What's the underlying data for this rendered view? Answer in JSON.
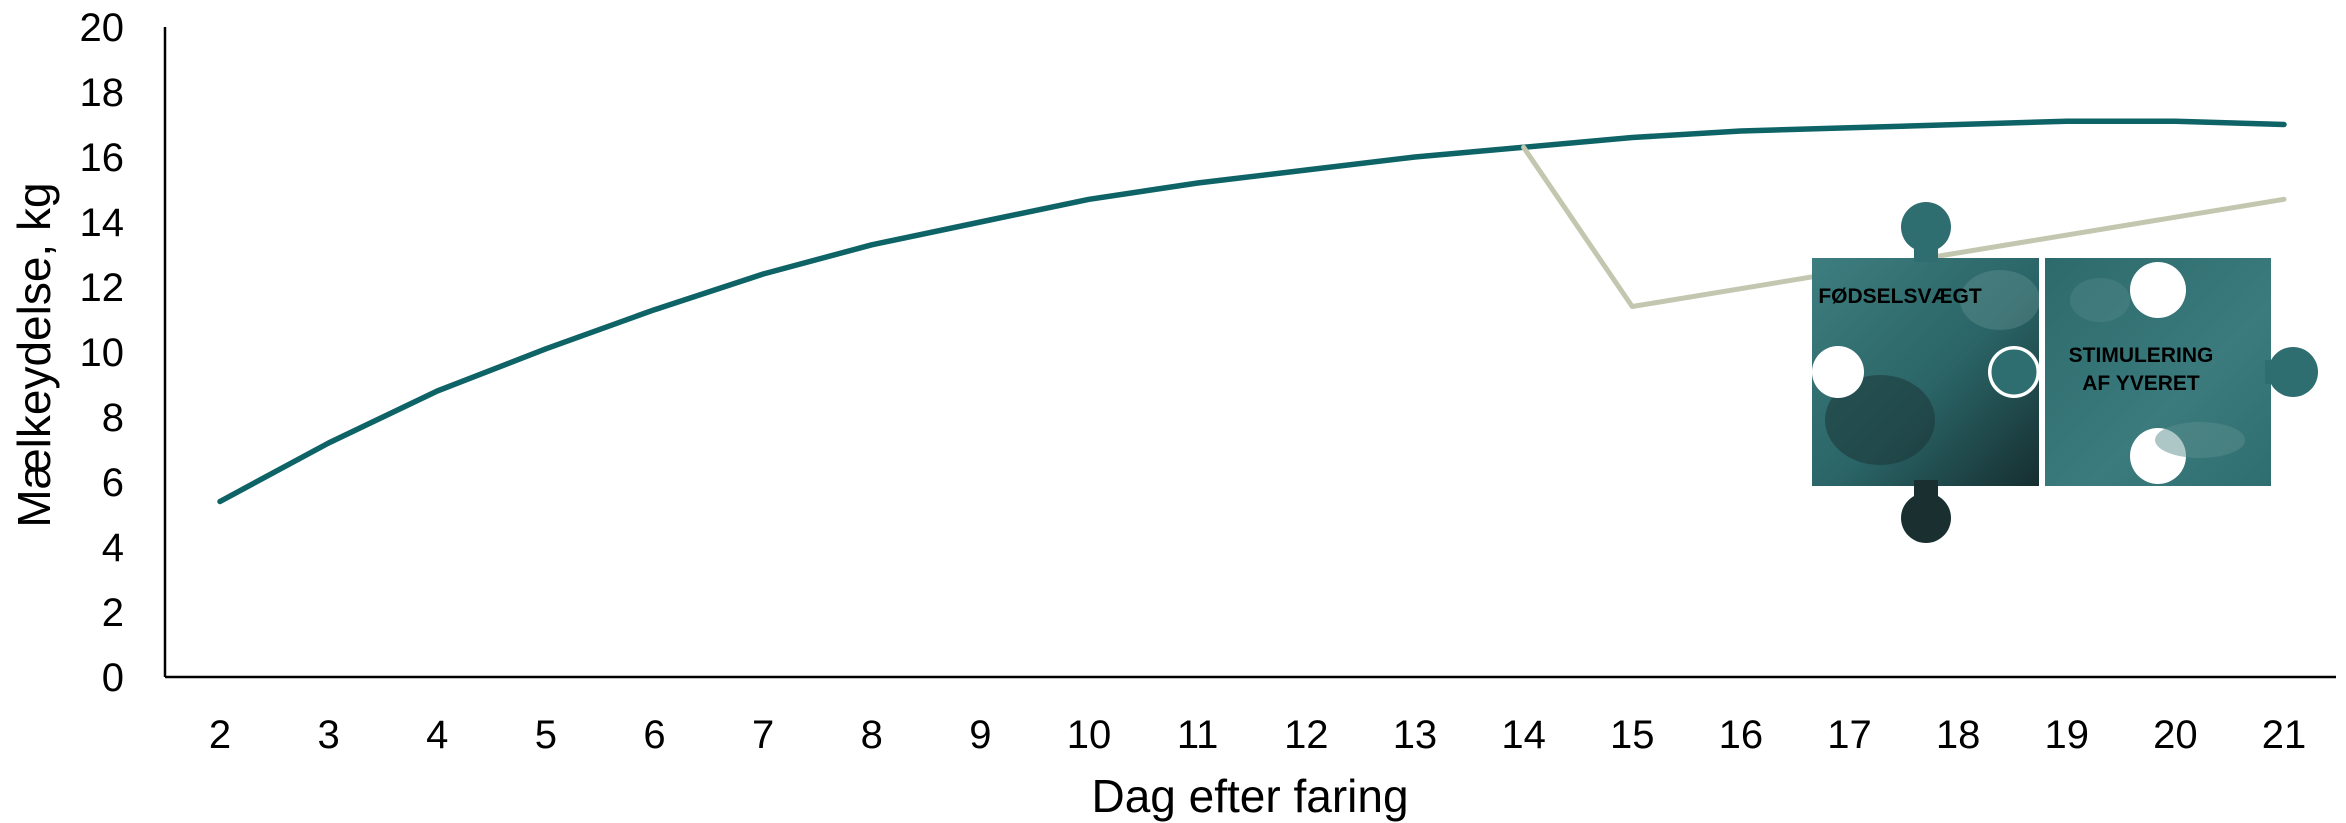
{
  "colors": {
    "main_line": "#0e6366",
    "drop_line": "#c4c7b0",
    "axis": "#000000",
    "puzzle_teal": "#2f6e70",
    "puzzle_dark": "#1d3b3c"
  },
  "chart_data": {
    "type": "line",
    "xlabel": "Dag efter faring",
    "ylabel": "Mælkeydelse, kg",
    "xlim": [
      2,
      21
    ],
    "ylim": [
      0,
      20
    ],
    "x_ticks": [
      "2",
      "3",
      "4",
      "5",
      "6",
      "7",
      "8",
      "9",
      "10",
      "11",
      "12",
      "13",
      "14",
      "15",
      "16",
      "17",
      "18",
      "19",
      "20",
      "21"
    ],
    "y_ticks": [
      "0",
      "2",
      "4",
      "6",
      "8",
      "10",
      "12",
      "14",
      "16",
      "18",
      "20"
    ],
    "grid": false,
    "legend": "none",
    "series": [
      {
        "color": "#0e6366",
        "x": [
          2,
          3,
          4,
          5,
          6,
          7,
          8,
          9,
          10,
          11,
          12,
          13,
          14,
          15,
          16,
          17,
          18,
          19,
          20,
          21
        ],
        "y": [
          5.4,
          7.2,
          8.8,
          10.1,
          11.3,
          12.4,
          13.3,
          14.0,
          14.7,
          15.2,
          15.6,
          16.0,
          16.3,
          16.6,
          16.8,
          16.9,
          17.0,
          17.1,
          17.1,
          17.0
        ]
      },
      {
        "color": "#c4c7b0",
        "x": [
          14,
          15,
          21
        ],
        "y": [
          16.3,
          11.4,
          14.7
        ]
      }
    ]
  },
  "puzzle": {
    "left_piece_label": "FØDSELSVÆGT",
    "right_piece_label_line1": "STIMULERING",
    "right_piece_label_line2": "AF YVERET"
  }
}
